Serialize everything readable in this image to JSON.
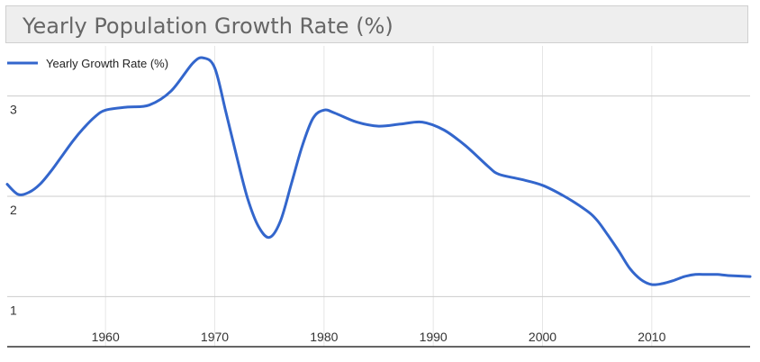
{
  "title": "Yearly Population Growth Rate (%)",
  "chart_data": {
    "type": "line",
    "title": "Yearly Population Growth Rate (%)",
    "xlabel": "",
    "ylabel": "",
    "xlim": [
      1951,
      2019
    ],
    "ylim": [
      0.5,
      3.5
    ],
    "xticks": [
      1960,
      1970,
      1980,
      1990,
      2000,
      2010
    ],
    "xtick_labels": [
      "1960",
      "1970",
      "1980",
      "1990",
      "2000",
      "2010"
    ],
    "yticks": [
      1,
      2,
      3
    ],
    "ytick_labels": [
      "1",
      "2",
      "3"
    ],
    "grid": true,
    "legend": "top-left",
    "series": [
      {
        "name": "Yearly Growth Rate (%)",
        "color": "#3366cc",
        "points": [
          [
            1951,
            2.12
          ],
          [
            1952,
            2.02
          ],
          [
            1953,
            2.04
          ],
          [
            1954,
            2.12
          ],
          [
            1955,
            2.25
          ],
          [
            1956,
            2.4
          ],
          [
            1957,
            2.55
          ],
          [
            1958,
            2.68
          ],
          [
            1959,
            2.79
          ],
          [
            1960,
            2.86
          ],
          [
            1962,
            2.89
          ],
          [
            1964,
            2.91
          ],
          [
            1966,
            3.05
          ],
          [
            1968,
            3.33
          ],
          [
            1969,
            3.38
          ],
          [
            1970,
            3.28
          ],
          [
            1971,
            2.85
          ],
          [
            1972,
            2.4
          ],
          [
            1973,
            1.98
          ],
          [
            1974,
            1.7
          ],
          [
            1975,
            1.59
          ],
          [
            1976,
            1.75
          ],
          [
            1977,
            2.12
          ],
          [
            1978,
            2.5
          ],
          [
            1979,
            2.78
          ],
          [
            1980,
            2.86
          ],
          [
            1981,
            2.83
          ],
          [
            1983,
            2.74
          ],
          [
            1985,
            2.7
          ],
          [
            1987,
            2.72
          ],
          [
            1989,
            2.74
          ],
          [
            1991,
            2.66
          ],
          [
            1993,
            2.5
          ],
          [
            1995,
            2.3
          ],
          [
            1996,
            2.22
          ],
          [
            1998,
            2.17
          ],
          [
            2000,
            2.11
          ],
          [
            2002,
            2.0
          ],
          [
            2004,
            1.86
          ],
          [
            2005,
            1.76
          ],
          [
            2006,
            1.61
          ],
          [
            2007,
            1.45
          ],
          [
            2008,
            1.28
          ],
          [
            2009,
            1.17
          ],
          [
            2010,
            1.12
          ],
          [
            2011,
            1.13
          ],
          [
            2012,
            1.16
          ],
          [
            2013,
            1.2
          ],
          [
            2014,
            1.22
          ],
          [
            2015,
            1.22
          ],
          [
            2016,
            1.22
          ],
          [
            2017,
            1.21
          ],
          [
            2019,
            1.2
          ]
        ]
      }
    ]
  }
}
